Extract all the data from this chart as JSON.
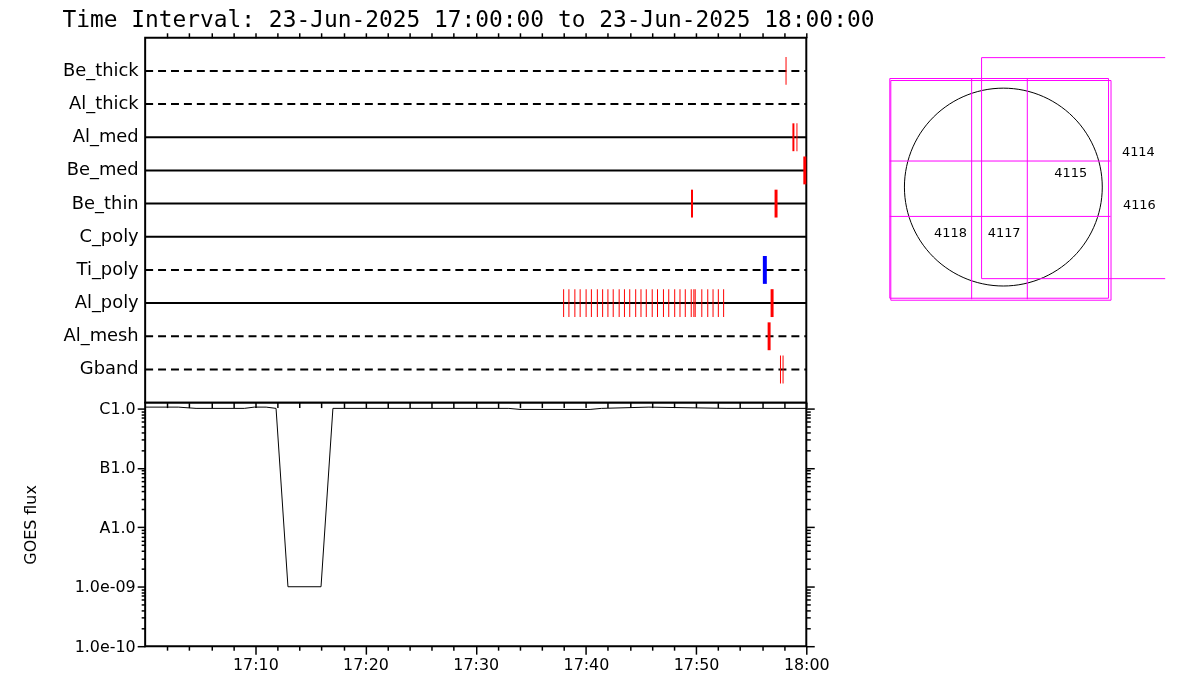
{
  "chart_data": [
    {
      "type": "bar",
      "orientation": "horizontal",
      "title": "Time Interval: 23-Jun-2025 17:00:00 to 23-Jun-2025 18:00:00",
      "tick_labels": "y",
      "categories": [
        "Be_thick",
        "Al_thick",
        "Al_med",
        "Be_med",
        "Be_thin",
        "C_poly",
        "Ti_poly",
        "Al_poly",
        "Al_mesh",
        "Gband"
      ],
      "xlim": [
        17,
        18
      ],
      "xticks": [
        17.0333,
        17.0667,
        17.1,
        17.1333,
        17.1667,
        17.2,
        17.2333,
        17.2667,
        17.3,
        17.3333,
        17.3667,
        17.4,
        17.4333,
        17.4667,
        17.5,
        17.5333,
        17.5667,
        17.6,
        17.6333,
        17.6667,
        17.7,
        17.7333,
        17.7667,
        17.8,
        17.8333,
        17.8667,
        17.9,
        17.9333,
        17.9667,
        18
      ],
      "ref_lines": [
        {
          "axis": "y",
          "value": "Be_thick",
          "line_style": "dashed",
          "color": "#000000"
        },
        {
          "axis": "y",
          "value": "Al_thick",
          "line_style": "dashed",
          "color": "#000000"
        },
        {
          "axis": "y",
          "value": "Al_med",
          "line_style": "solid",
          "color": "#000000"
        },
        {
          "axis": "y",
          "value": "Be_med",
          "line_style": "solid",
          "color": "#000000"
        },
        {
          "axis": "y",
          "value": "Be_thin",
          "line_style": "solid",
          "color": "#000000"
        },
        {
          "axis": "y",
          "value": "C_poly",
          "line_style": "solid",
          "color": "#000000"
        },
        {
          "axis": "y",
          "value": "Ti_poly",
          "line_style": "dashed",
          "color": "#000000"
        },
        {
          "axis": "y",
          "value": "Al_poly",
          "line_style": "solid",
          "color": "#000000"
        },
        {
          "axis": "y",
          "value": "Al_mesh",
          "line_style": "dashed",
          "color": "#000000"
        },
        {
          "axis": "y",
          "value": "Gband",
          "line_style": "dashed",
          "color": "#000000"
        }
      ],
      "series": [
        {
          "color": "#0000ff",
          "base": [
            null,
            null,
            null,
            null,
            null,
            null,
            17.9343,
            null,
            null,
            null
          ],
          "values": [
            null,
            null,
            null,
            null,
            null,
            null,
            0.006,
            null,
            null,
            null
          ]
        },
        {
          "color": "#ff0000",
          "base": [
            17.9686,
            null,
            17.979,
            17.9955,
            17.8256,
            null,
            null,
            17.6322,
            17.9415,
            17.9602
          ],
          "values": [
            0.0015,
            null,
            0.003,
            0.0045,
            0.003,
            null,
            null,
            0.0015,
            0.0045,
            0.0015
          ]
        },
        {
          "color": "#ff0000",
          "base": [
            null,
            null,
            17.9851,
            null,
            17.952,
            null,
            null,
            17.6402,
            null,
            17.9641
          ],
          "values": [
            null,
            null,
            0.0015,
            null,
            0.0045,
            null,
            null,
            0.0015,
            null,
            0.0015
          ]
        },
        {
          "color": "#ff0000",
          "base": [
            null,
            null,
            null,
            null,
            null,
            null,
            null,
            17.6492,
            null,
            null
          ],
          "values": [
            null,
            null,
            null,
            null,
            null,
            null,
            null,
            0.0015,
            null,
            null
          ]
        },
        {
          "color": "#ff0000",
          "base": [
            null,
            null,
            null,
            null,
            null,
            null,
            null,
            17.6572,
            null,
            null
          ],
          "values": [
            null,
            null,
            null,
            null,
            null,
            null,
            null,
            0.0015,
            null,
            null
          ]
        },
        {
          "color": "#ff0000",
          "base": [
            null,
            null,
            null,
            null,
            null,
            null,
            null,
            17.6662,
            null,
            null
          ],
          "values": [
            null,
            null,
            null,
            null,
            null,
            null,
            null,
            0.0015,
            null,
            null
          ]
        },
        {
          "color": "#ff0000",
          "base": [
            null,
            null,
            null,
            null,
            null,
            null,
            null,
            17.6742,
            null,
            null
          ],
          "values": [
            null,
            null,
            null,
            null,
            null,
            null,
            null,
            0.0015,
            null,
            null
          ]
        },
        {
          "color": "#ff0000",
          "base": [
            null,
            null,
            null,
            null,
            null,
            null,
            null,
            17.6832,
            null,
            null
          ],
          "values": [
            null,
            null,
            null,
            null,
            null,
            null,
            null,
            0.0015,
            null,
            null
          ]
        },
        {
          "color": "#ff0000",
          "base": [
            null,
            null,
            null,
            null,
            null,
            null,
            null,
            17.6912,
            null,
            null
          ],
          "values": [
            null,
            null,
            null,
            null,
            null,
            null,
            null,
            0.0015,
            null,
            null
          ]
        },
        {
          "color": "#ff0000",
          "base": [
            null,
            null,
            null,
            null,
            null,
            null,
            null,
            17.6992,
            null,
            null
          ],
          "values": [
            null,
            null,
            null,
            null,
            null,
            null,
            null,
            0.0015,
            null,
            null
          ]
        },
        {
          "color": "#ff0000",
          "base": [
            null,
            null,
            null,
            null,
            null,
            null,
            null,
            17.7072,
            null,
            null
          ],
          "values": [
            null,
            null,
            null,
            null,
            null,
            null,
            null,
            0.0015,
            null,
            null
          ]
        },
        {
          "color": "#ff0000",
          "base": [
            null,
            null,
            null,
            null,
            null,
            null,
            null,
            17.7162,
            null,
            null
          ],
          "values": [
            null,
            null,
            null,
            null,
            null,
            null,
            null,
            0.0015,
            null,
            null
          ]
        },
        {
          "color": "#ff0000",
          "base": [
            null,
            null,
            null,
            null,
            null,
            null,
            null,
            17.7242,
            null,
            null
          ],
          "values": [
            null,
            null,
            null,
            null,
            null,
            null,
            null,
            0.0015,
            null,
            null
          ]
        },
        {
          "color": "#ff0000",
          "base": [
            null,
            null,
            null,
            null,
            null,
            null,
            null,
            17.7322,
            null,
            null
          ],
          "values": [
            null,
            null,
            null,
            null,
            null,
            null,
            null,
            0.0015,
            null,
            null
          ]
        },
        {
          "color": "#ff0000",
          "base": [
            null,
            null,
            null,
            null,
            null,
            null,
            null,
            17.7412,
            null,
            null
          ],
          "values": [
            null,
            null,
            null,
            null,
            null,
            null,
            null,
            0.0015,
            null,
            null
          ]
        },
        {
          "color": "#ff0000",
          "base": [
            null,
            null,
            null,
            null,
            null,
            null,
            null,
            17.7492,
            null,
            null
          ],
          "values": [
            null,
            null,
            null,
            null,
            null,
            null,
            null,
            0.0015,
            null,
            null
          ]
        },
        {
          "color": "#ff0000",
          "base": [
            null,
            null,
            null,
            null,
            null,
            null,
            null,
            17.7572,
            null,
            null
          ],
          "values": [
            null,
            null,
            null,
            null,
            null,
            null,
            null,
            0.0015,
            null,
            null
          ]
        },
        {
          "color": "#ff0000",
          "base": [
            null,
            null,
            null,
            null,
            null,
            null,
            null,
            17.7662,
            null,
            null
          ],
          "values": [
            null,
            null,
            null,
            null,
            null,
            null,
            null,
            0.0015,
            null,
            null
          ]
        },
        {
          "color": "#ff0000",
          "base": [
            null,
            null,
            null,
            null,
            null,
            null,
            null,
            17.7742,
            null,
            null
          ],
          "values": [
            null,
            null,
            null,
            null,
            null,
            null,
            null,
            0.0015,
            null,
            null
          ]
        },
        {
          "color": "#ff0000",
          "base": [
            null,
            null,
            null,
            null,
            null,
            null,
            null,
            17.7832,
            null,
            null
          ],
          "values": [
            null,
            null,
            null,
            null,
            null,
            null,
            null,
            0.0015,
            null,
            null
          ]
        },
        {
          "color": "#ff0000",
          "base": [
            null,
            null,
            null,
            null,
            null,
            null,
            null,
            17.7912,
            null,
            null
          ],
          "values": [
            null,
            null,
            null,
            null,
            null,
            null,
            null,
            0.0015,
            null,
            null
          ]
        },
        {
          "color": "#ff0000",
          "base": [
            null,
            null,
            null,
            null,
            null,
            null,
            null,
            17.8002,
            null,
            null
          ],
          "values": [
            null,
            null,
            null,
            null,
            null,
            null,
            null,
            0.0015,
            null,
            null
          ]
        },
        {
          "color": "#ff0000",
          "base": [
            null,
            null,
            null,
            null,
            null,
            null,
            null,
            17.8082,
            null,
            null
          ],
          "values": [
            null,
            null,
            null,
            null,
            null,
            null,
            null,
            0.0015,
            null,
            null
          ]
        },
        {
          "color": "#ff0000",
          "base": [
            null,
            null,
            null,
            null,
            null,
            null,
            null,
            17.8162,
            null,
            null
          ],
          "values": [
            null,
            null,
            null,
            null,
            null,
            null,
            null,
            0.0015,
            null,
            null
          ]
        },
        {
          "color": "#ff0000",
          "base": [
            null,
            null,
            null,
            null,
            null,
            null,
            null,
            17.8252,
            null,
            null
          ],
          "values": [
            null,
            null,
            null,
            null,
            null,
            null,
            null,
            0.0015,
            null,
            null
          ]
        },
        {
          "color": "#ff0000",
          "base": [
            null,
            null,
            null,
            null,
            null,
            null,
            null,
            17.8292,
            null,
            null
          ],
          "values": [
            null,
            null,
            null,
            null,
            null,
            null,
            null,
            0.0015,
            null,
            null
          ]
        },
        {
          "color": "#ff0000",
          "base": [
            null,
            null,
            null,
            null,
            null,
            null,
            null,
            17.8312,
            null,
            null
          ],
          "values": [
            null,
            null,
            null,
            null,
            null,
            null,
            null,
            0.0015,
            null,
            null
          ]
        },
        {
          "color": "#ff0000",
          "base": [
            null,
            null,
            null,
            null,
            null,
            null,
            null,
            17.8412,
            null,
            null
          ],
          "values": [
            null,
            null,
            null,
            null,
            null,
            null,
            null,
            0.0015,
            null,
            null
          ]
        },
        {
          "color": "#ff0000",
          "base": [
            null,
            null,
            null,
            null,
            null,
            null,
            null,
            17.8502,
            null,
            null
          ],
          "values": [
            null,
            null,
            null,
            null,
            null,
            null,
            null,
            0.0015,
            null,
            null
          ]
        },
        {
          "color": "#ff0000",
          "base": [
            null,
            null,
            null,
            null,
            null,
            null,
            null,
            17.8582,
            null,
            null
          ],
          "values": [
            null,
            null,
            null,
            null,
            null,
            null,
            null,
            0.0015,
            null,
            null
          ]
        },
        {
          "color": "#ff0000",
          "base": [
            null,
            null,
            null,
            null,
            null,
            null,
            null,
            17.8662,
            null,
            null
          ],
          "values": [
            null,
            null,
            null,
            null,
            null,
            null,
            null,
            0.0015,
            null,
            null
          ]
        },
        {
          "color": "#ff0000",
          "base": [
            null,
            null,
            null,
            null,
            null,
            null,
            null,
            17.8742,
            null,
            null
          ],
          "values": [
            null,
            null,
            null,
            null,
            null,
            null,
            null,
            0.0015,
            null,
            null
          ]
        },
        {
          "color": "#ff0000",
          "base": [
            null,
            null,
            null,
            null,
            null,
            null,
            null,
            17.946,
            null,
            null
          ],
          "values": [
            null,
            null,
            null,
            null,
            null,
            null,
            null,
            0.0045,
            null,
            null
          ]
        }
      ]
    },
    {
      "type": "line",
      "ylabel": "GOES flux",
      "log": true,
      "color": "#000000",
      "xlim": [
        17,
        18
      ],
      "ylim": [
        1e-10,
        1.25e-06
      ],
      "xticks": [
        {
          "value": 17.0333,
          "label": null
        },
        {
          "value": 17.0667,
          "label": null
        },
        {
          "value": 17.1,
          "label": null
        },
        {
          "value": 17.1333,
          "label": null
        },
        {
          "value": 17.1667,
          "label": "17:10"
        },
        {
          "value": 17.2,
          "label": null
        },
        {
          "value": 17.2333,
          "label": null
        },
        {
          "value": 17.2667,
          "label": null
        },
        {
          "value": 17.3,
          "label": null
        },
        {
          "value": 17.3333,
          "label": "17:20"
        },
        {
          "value": 17.3667,
          "label": null
        },
        {
          "value": 17.4,
          "label": null
        },
        {
          "value": 17.4333,
          "label": null
        },
        {
          "value": 17.4667,
          "label": null
        },
        {
          "value": 17.5,
          "label": "17:30"
        },
        {
          "value": 17.5333,
          "label": null
        },
        {
          "value": 17.5667,
          "label": null
        },
        {
          "value": 17.6,
          "label": null
        },
        {
          "value": 17.6333,
          "label": null
        },
        {
          "value": 17.6667,
          "label": "17:40"
        },
        {
          "value": 17.7,
          "label": null
        },
        {
          "value": 17.7333,
          "label": null
        },
        {
          "value": 17.7667,
          "label": null
        },
        {
          "value": 17.8,
          "label": null
        },
        {
          "value": 17.8333,
          "label": "17:50"
        },
        {
          "value": 17.8667,
          "label": null
        },
        {
          "value": 17.9,
          "label": null
        },
        {
          "value": 17.9333,
          "label": null
        },
        {
          "value": 17.9667,
          "label": null
        },
        {
          "value": 18,
          "label": "18:00"
        }
      ],
      "yticks": [
        {
          "value": 1e-10,
          "label": "1.0e-10"
        },
        {
          "value": 2e-10,
          "label": null
        },
        {
          "value": 3e-10,
          "label": null
        },
        {
          "value": 4e-10,
          "label": null
        },
        {
          "value": 5e-10,
          "label": null
        },
        {
          "value": 6e-10,
          "label": null
        },
        {
          "value": 7e-10,
          "label": null
        },
        {
          "value": 8e-10,
          "label": null
        },
        {
          "value": 9e-10,
          "label": null
        },
        {
          "value": 1e-09,
          "label": "1.0e-09"
        },
        {
          "value": 2e-09,
          "label": null
        },
        {
          "value": 3e-09,
          "label": null
        },
        {
          "value": 4e-09,
          "label": null
        },
        {
          "value": 5e-09,
          "label": null
        },
        {
          "value": 6e-09,
          "label": null
        },
        {
          "value": 7e-09,
          "label": null
        },
        {
          "value": 8e-09,
          "label": null
        },
        {
          "value": 9e-09,
          "label": null
        },
        {
          "value": 1e-08,
          "label": "A1.0"
        },
        {
          "value": 2e-08,
          "label": null
        },
        {
          "value": 3e-08,
          "label": null
        },
        {
          "value": 4e-08,
          "label": null
        },
        {
          "value": 5e-08,
          "label": null
        },
        {
          "value": 6e-08,
          "label": null
        },
        {
          "value": 7e-08,
          "label": null
        },
        {
          "value": 8e-08,
          "label": null
        },
        {
          "value": 9e-08,
          "label": null
        },
        {
          "value": 1e-07,
          "label": "B1.0"
        },
        {
          "value": 2e-07,
          "label": null
        },
        {
          "value": 3e-07,
          "label": null
        },
        {
          "value": 4e-07,
          "label": null
        },
        {
          "value": 5e-07,
          "label": null
        },
        {
          "value": 6e-07,
          "label": null
        },
        {
          "value": 7e-07,
          "label": null
        },
        {
          "value": 8e-07,
          "label": null
        },
        {
          "value": 9e-07,
          "label": null
        },
        {
          "value": 1e-06,
          "label": "C1.0"
        }
      ],
      "x": [
        17.0,
        17.05,
        17.077,
        17.15,
        17.165,
        17.183,
        17.198,
        17.216,
        17.266,
        17.284,
        17.55,
        17.567,
        17.673,
        17.69,
        17.762,
        17.88,
        18.0
      ],
      "values": [
        1.05e-06,
        1.05e-06,
        1e-06,
        1e-06,
        1.05e-06,
        1.05e-06,
        1e-06,
        1e-09,
        1e-09,
        1e-06,
        1e-06,
        9.6e-07,
        9.6e-07,
        1e-06,
        1.05e-06,
        1e-06,
        1e-06
      ]
    },
    {
      "type": "other",
      "annotations": [
        "4114",
        "4115",
        "4116",
        "4117",
        "4118"
      ]
    }
  ]
}
